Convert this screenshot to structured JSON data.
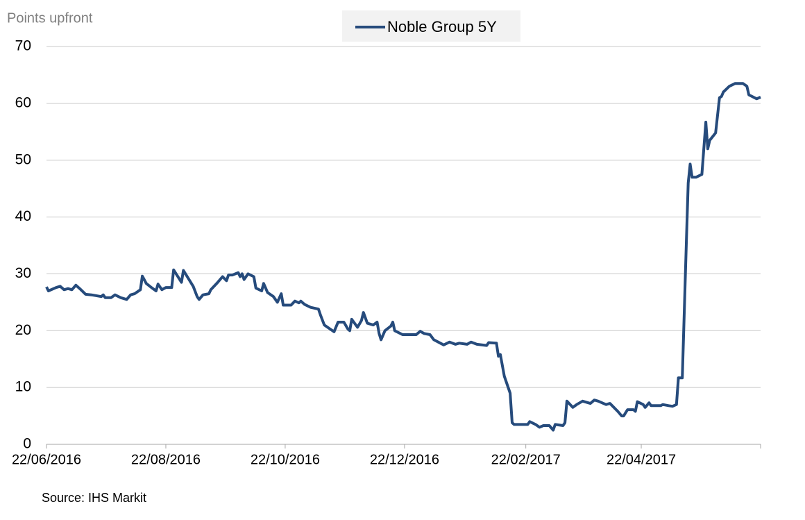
{
  "chart_data": {
    "type": "line",
    "y_axis_title": "Points upfront",
    "source": "Source: IHS Markit",
    "x": [
      "2016-06-22",
      "2016-06-23",
      "2016-06-27",
      "2016-06-29",
      "2016-07-01",
      "2016-07-03",
      "2016-07-05",
      "2016-07-07",
      "2016-07-09",
      "2016-07-12",
      "2016-07-15",
      "2016-07-20",
      "2016-07-21",
      "2016-07-22",
      "2016-07-25",
      "2016-07-27",
      "2016-07-30",
      "2016-08-02",
      "2016-08-04",
      "2016-08-06",
      "2016-08-09",
      "2016-08-10",
      "2016-08-12",
      "2016-08-15",
      "2016-08-17",
      "2016-08-18",
      "2016-08-20",
      "2016-08-22",
      "2016-08-25",
      "2016-08-26",
      "2016-08-30",
      "2016-08-31",
      "2016-09-05",
      "2016-09-07",
      "2016-09-08",
      "2016-09-10",
      "2016-09-13",
      "2016-09-14",
      "2016-09-17",
      "2016-09-20",
      "2016-09-22",
      "2016-09-23",
      "2016-09-25",
      "2016-09-28",
      "2016-09-29",
      "2016-09-30",
      "2016-10-01",
      "2016-10-03",
      "2016-10-06",
      "2016-10-07",
      "2016-10-10",
      "2016-10-11",
      "2016-10-13",
      "2016-10-16",
      "2016-10-18",
      "2016-10-20",
      "2016-10-21",
      "2016-10-25",
      "2016-10-27",
      "2016-10-29",
      "2016-10-30",
      "2016-11-01",
      "2016-11-04",
      "2016-11-08",
      "2016-11-09",
      "2016-11-11",
      "2016-11-16",
      "2016-11-18",
      "2016-11-21",
      "2016-11-23",
      "2016-11-24",
      "2016-11-25",
      "2016-11-28",
      "2016-11-30",
      "2016-12-01",
      "2016-12-03",
      "2016-12-06",
      "2016-12-08",
      "2016-12-09",
      "2016-12-10",
      "2016-12-12",
      "2016-12-15",
      "2016-12-16",
      "2016-12-17",
      "2016-12-21",
      "2016-12-28",
      "2016-12-30",
      "2017-01-01",
      "2017-01-04",
      "2017-01-06",
      "2017-01-11",
      "2017-01-14",
      "2017-01-17",
      "2017-01-19",
      "2017-01-23",
      "2017-01-25",
      "2017-01-28",
      "2017-02-02",
      "2017-02-03",
      "2017-02-07",
      "2017-02-08",
      "2017-02-09",
      "2017-02-11",
      "2017-02-14",
      "2017-02-15",
      "2017-02-16",
      "2017-02-23",
      "2017-02-24",
      "2017-02-27",
      "2017-03-01",
      "2017-03-03",
      "2017-03-06",
      "2017-03-08",
      "2017-03-09",
      "2017-03-13",
      "2017-03-14",
      "2017-03-15",
      "2017-03-18",
      "2017-03-20",
      "2017-03-23",
      "2017-03-27",
      "2017-03-29",
      "2017-03-31",
      "2017-04-04",
      "2017-04-06",
      "2017-04-08",
      "2017-04-10",
      "2017-04-12",
      "2017-04-13",
      "2017-04-15",
      "2017-04-18",
      "2017-04-19",
      "2017-04-20",
      "2017-04-23",
      "2017-04-24",
      "2017-04-26",
      "2017-04-27",
      "2017-05-02",
      "2017-05-03",
      "2017-05-06",
      "2017-05-08",
      "2017-05-10",
      "2017-05-11",
      "2017-05-13",
      "2017-05-15",
      "2017-05-16",
      "2017-05-17",
      "2017-05-18",
      "2017-05-20",
      "2017-05-23",
      "2017-05-25",
      "2017-05-26",
      "2017-05-27",
      "2017-05-30",
      "2017-06-01",
      "2017-06-02",
      "2017-06-03",
      "2017-06-06",
      "2017-06-09",
      "2017-06-13",
      "2017-06-15",
      "2017-06-16",
      "2017-06-20",
      "2017-06-22"
    ],
    "series": [
      {
        "name": "Noble Group 5Y",
        "color": "#264b7c",
        "values": [
          27.7,
          27.0,
          27.6,
          27.8,
          27.2,
          27.4,
          27.2,
          28.0,
          27.4,
          26.4,
          26.3,
          26.0,
          26.3,
          25.8,
          25.8,
          26.3,
          25.8,
          25.5,
          26.3,
          26.5,
          27.2,
          29.6,
          28.3,
          27.5,
          27.0,
          28.2,
          27.2,
          27.6,
          27.6,
          30.7,
          28.5,
          30.6,
          27.8,
          26.0,
          25.5,
          26.3,
          26.5,
          27.2,
          28.3,
          29.5,
          28.8,
          29.8,
          29.8,
          30.2,
          29.5,
          30.0,
          29.0,
          30.0,
          29.5,
          27.5,
          27.0,
          28.3,
          26.7,
          26.0,
          25.0,
          26.5,
          24.5,
          24.5,
          25.2,
          24.9,
          25.2,
          24.6,
          24.1,
          23.8,
          22.8,
          21.0,
          19.8,
          21.5,
          21.5,
          20.3,
          20.0,
          22.0,
          20.6,
          21.8,
          23.2,
          21.3,
          21.0,
          21.5,
          19.5,
          18.4,
          20.0,
          20.8,
          21.5,
          20.0,
          19.3,
          19.3,
          19.9,
          19.5,
          19.3,
          18.4,
          17.5,
          18.0,
          17.6,
          17.8,
          17.6,
          18.0,
          17.6,
          17.4,
          17.9,
          17.8,
          15.5,
          15.8,
          12.0,
          9.0,
          3.8,
          3.5,
          3.5,
          4.0,
          3.5,
          3.0,
          3.3,
          3.3,
          2.5,
          3.5,
          3.3,
          3.8,
          7.6,
          6.5,
          7.0,
          7.6,
          7.2,
          7.8,
          7.6,
          7.0,
          7.2,
          6.5,
          5.8,
          5.0,
          5.0,
          6.1,
          6.1,
          5.8,
          7.5,
          7.0,
          6.5,
          7.3,
          6.8,
          6.8,
          7.0,
          6.8,
          6.7,
          7.0,
          11.7,
          11.7,
          35.0,
          46.0,
          49.3,
          47.0,
          47.0,
          47.5,
          56.7,
          52.0,
          53.5,
          54.8,
          61.0,
          61.2,
          62.0,
          63.0,
          63.5,
          63.5,
          63.0,
          61.5,
          60.8,
          61.1
        ]
      }
    ],
    "xlim": [
      "2016-06-22",
      "2017-06-22"
    ],
    "xticks": [
      {
        "value": "2016-06-22",
        "label": "22/06/2016"
      },
      {
        "value": "2016-08-22",
        "label": "22/08/2016"
      },
      {
        "value": "2016-10-22",
        "label": "22/10/2016"
      },
      {
        "value": "2016-12-22",
        "label": "22/12/2016"
      },
      {
        "value": "2017-02-22",
        "label": "22/02/2017"
      },
      {
        "value": "2017-04-22",
        "label": "22/04/2017"
      }
    ],
    "ylim": [
      0,
      70
    ],
    "yticks": [
      0,
      10,
      20,
      30,
      40,
      50,
      60,
      70
    ],
    "grid": true,
    "legend": "top"
  }
}
